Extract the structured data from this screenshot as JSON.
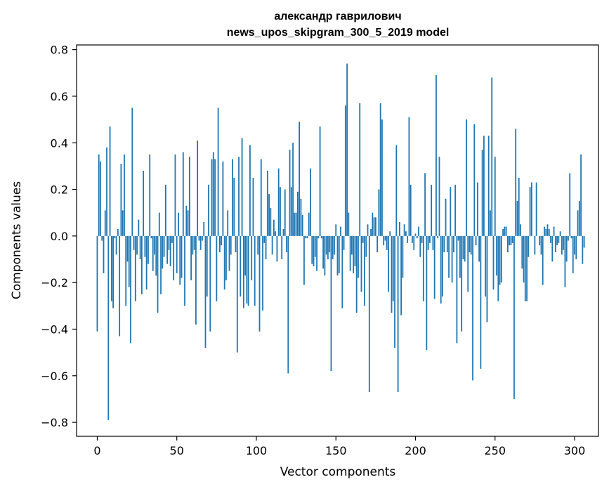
{
  "chart_data": {
    "type": "bar",
    "title_line1": "александр гаврилович",
    "title_line2": "news_upos_skipgram_300_5_2019 model",
    "xlabel": "Vector components",
    "ylabel": "Components values",
    "xlim": [
      -13,
      315
    ],
    "ylim": [
      -0.86,
      0.82
    ],
    "xticks": [
      0,
      50,
      100,
      150,
      200,
      250,
      300
    ],
    "xtick_labels": [
      "0",
      "50",
      "100",
      "150",
      "200",
      "250",
      "300"
    ],
    "yticks": [
      -0.8,
      -0.6,
      -0.4,
      -0.2,
      0.0,
      0.2,
      0.4,
      0.6,
      0.8
    ],
    "ytick_labels": [
      "−0.8",
      "−0.6",
      "−0.4",
      "−0.2",
      "0.0",
      "0.2",
      "0.4",
      "0.6",
      "0.8"
    ],
    "grid": false,
    "bar_color": "#1f77b4",
    "values": [
      -0.41,
      0.35,
      0.32,
      -0.02,
      -0.16,
      0.11,
      0.38,
      -0.79,
      0.47,
      -0.28,
      -0.31,
      -0.01,
      -0.08,
      0.03,
      -0.43,
      0.31,
      0.11,
      0.35,
      -0.3,
      -0.11,
      -0.22,
      -0.46,
      0.55,
      -0.06,
      -0.28,
      -0.08,
      0.07,
      -0.1,
      -0.25,
      0.28,
      -0.09,
      -0.23,
      -0.12,
      0.35,
      -0.01,
      -0.15,
      -0.08,
      -0.17,
      -0.33,
      0.1,
      -0.25,
      -0.14,
      -0.09,
      0.22,
      -0.12,
      -0.06,
      -0.13,
      -0.03,
      -0.19,
      0.35,
      -0.16,
      0.1,
      -0.21,
      -0.18,
      0.36,
      -0.3,
      0.13,
      0.11,
      0.34,
      -0.19,
      -0.08,
      -0.06,
      -0.38,
      0.41,
      -0.02,
      -0.06,
      -0.02,
      0.06,
      -0.48,
      -0.26,
      0.22,
      -0.41,
      0.33,
      0.36,
      0.33,
      -0.28,
      0.55,
      -0.07,
      -0.04,
      0.32,
      -0.23,
      -0.19,
      0.11,
      -0.15,
      -0.08,
      0.33,
      0.25,
      -0.07,
      -0.5,
      0.34,
      -0.26,
      0.42,
      -0.31,
      -0.17,
      -0.29,
      -0.3,
      0.39,
      -0.19,
      0.25,
      -0.3,
      0.0,
      -0.08,
      -0.41,
      0.33,
      -0.32,
      -0.03,
      -0.1,
      0.28,
      0.18,
      0.12,
      -0.08,
      0.07,
      0.02,
      -0.11,
      0.29,
      0.21,
      -0.1,
      0.03,
      0.2,
      -0.07,
      -0.59,
      0.37,
      0.21,
      0.4,
      0.1,
      0.1,
      0.19,
      0.49,
      0.16,
      0.09,
      -0.21,
      -0.01,
      -0.01,
      0.1,
      0.29,
      -0.12,
      -0.13,
      -0.09,
      -0.15,
      -0.01,
      0.47,
      -0.01,
      -0.14,
      -0.17,
      -0.08,
      -0.1,
      -0.07,
      -0.58,
      -0.1,
      -0.08,
      0.05,
      -0.17,
      -0.16,
      0.04,
      -0.31,
      -0.06,
      0.56,
      0.74,
      0.1,
      -0.15,
      -0.08,
      -0.16,
      -0.13,
      -0.33,
      -0.18,
      0.57,
      -0.24,
      -0.03,
      -0.3,
      -0.09,
      0.05,
      -0.67,
      0.03,
      0.1,
      0.08,
      0.08,
      -0.07,
      0.2,
      0.57,
      0.5,
      -0.04,
      -0.02,
      -0.06,
      -0.24,
      0.02,
      -0.33,
      -0.28,
      -0.48,
      0.39,
      -0.67,
      0.06,
      -0.34,
      -0.18,
      0.05,
      0.02,
      -0.03,
      0.51,
      0.22,
      -0.03,
      -0.06,
      0.01,
      -0.01,
      0.04,
      -0.09,
      -0.03,
      -0.28,
      0.27,
      -0.49,
      -0.06,
      -0.03,
      0.22,
      -0.06,
      -0.27,
      0.69,
      -0.01,
      0.34,
      -0.29,
      -0.26,
      -0.07,
      0.16,
      -0.07,
      -0.18,
      0.21,
      -0.2,
      -0.07,
      0.22,
      -0.46,
      -0.02,
      -0.18,
      -0.41,
      -0.1,
      -0.11,
      0.5,
      -0.24,
      -0.07,
      -0.08,
      -0.62,
      0.48,
      -0.04,
      0.23,
      -0.11,
      -0.57,
      0.37,
      0.43,
      -0.26,
      -0.37,
      0.43,
      0.11,
      0.68,
      -0.23,
      0.34,
      -0.17,
      -0.28,
      -0.21,
      -0.2,
      0.03,
      0.04,
      0.04,
      -0.07,
      -0.04,
      -0.04,
      -0.03,
      -0.7,
      0.46,
      0.15,
      0.25,
      0.05,
      -0.14,
      -0.2,
      -0.28,
      -0.28,
      -0.09,
      0.21,
      0.23,
      0.0,
      -0.08,
      0.23,
      0.0,
      -0.04,
      -0.08,
      -0.21,
      0.04,
      0.03,
      0.05,
      0.03,
      -0.03,
      -0.11,
      0.04,
      -0.07,
      -0.04,
      -0.03,
      0.02,
      -0.08,
      -0.06,
      -0.22,
      -0.11,
      -0.02,
      0.27,
      -0.01,
      -0.16,
      -0.08,
      -0.1,
      0.11,
      0.15,
      0.35,
      -0.12,
      -0.05
    ]
  }
}
